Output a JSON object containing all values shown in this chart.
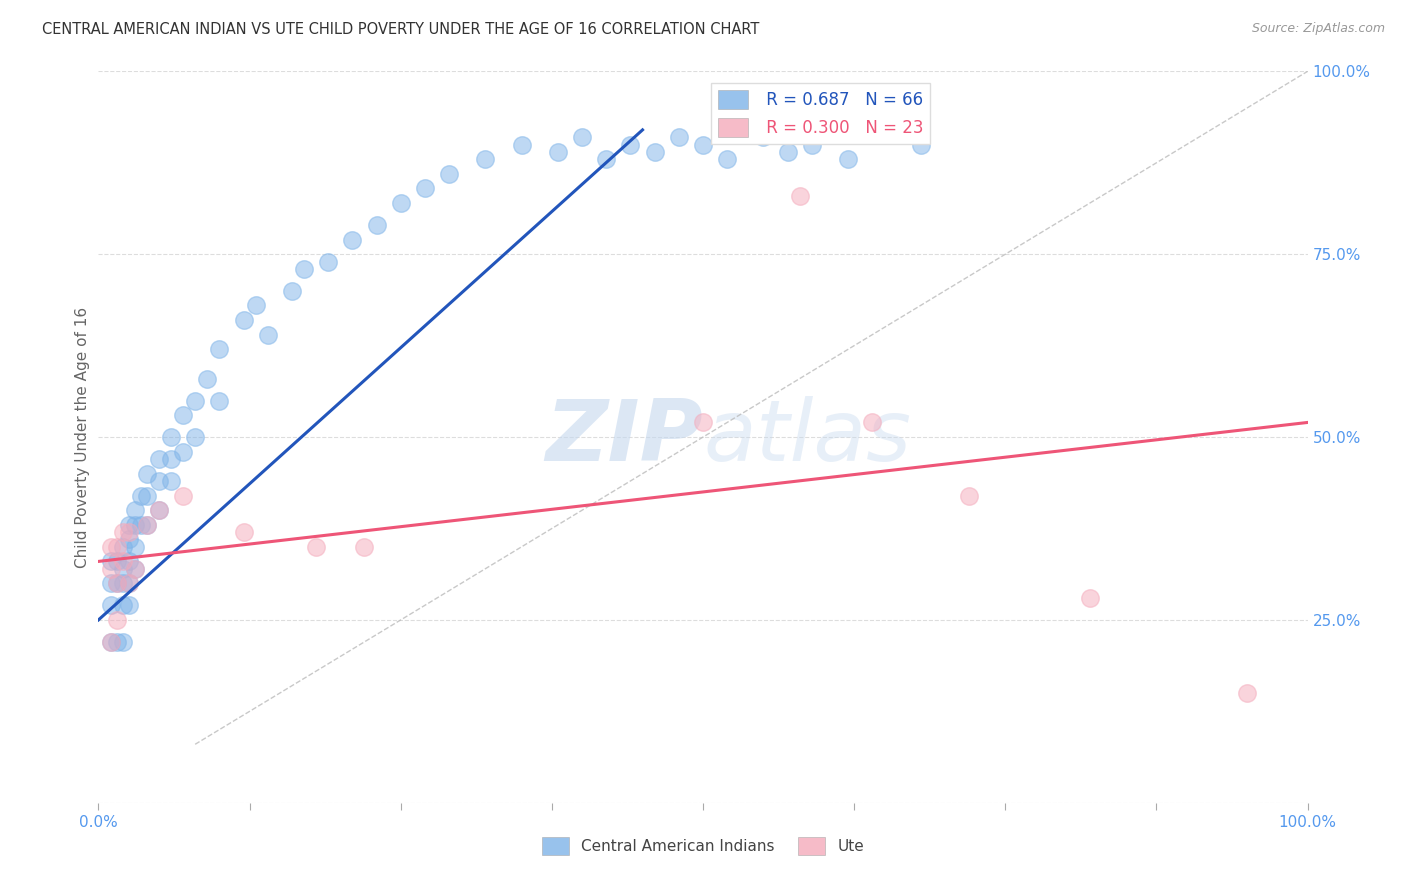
{
  "title": "CENTRAL AMERICAN INDIAN VS UTE CHILD POVERTY UNDER THE AGE OF 16 CORRELATION CHART",
  "source": "Source: ZipAtlas.com",
  "ylabel": "Child Poverty Under the Age of 16",
  "xlim": [
    0,
    1
  ],
  "ylim": [
    0,
    1
  ],
  "blue_color": "#7EB3E8",
  "pink_color": "#F4AABB",
  "blue_line_color": "#2255BB",
  "pink_line_color": "#EE5577",
  "axis_label_color": "#5599EE",
  "title_color": "#333333",
  "watermark_zip": "ZIP",
  "watermark_atlas": "atlas",
  "legend_r1": "R = 0.687",
  "legend_n1": "N = 66",
  "legend_r2": "R = 0.300",
  "legend_n2": "N = 23",
  "blue_scatter_x": [
    0.01,
    0.01,
    0.01,
    0.01,
    0.015,
    0.015,
    0.015,
    0.02,
    0.02,
    0.02,
    0.02,
    0.02,
    0.025,
    0.025,
    0.025,
    0.025,
    0.025,
    0.03,
    0.03,
    0.03,
    0.03,
    0.035,
    0.035,
    0.04,
    0.04,
    0.04,
    0.05,
    0.05,
    0.05,
    0.06,
    0.06,
    0.06,
    0.07,
    0.07,
    0.08,
    0.08,
    0.09,
    0.1,
    0.1,
    0.12,
    0.13,
    0.14,
    0.16,
    0.17,
    0.19,
    0.21,
    0.23,
    0.25,
    0.27,
    0.29,
    0.32,
    0.35,
    0.38,
    0.4,
    0.42,
    0.44,
    0.46,
    0.48,
    0.5,
    0.52,
    0.55,
    0.57,
    0.59,
    0.62,
    0.65,
    0.68
  ],
  "blue_scatter_y": [
    0.33,
    0.3,
    0.27,
    0.22,
    0.33,
    0.3,
    0.22,
    0.35,
    0.32,
    0.3,
    0.27,
    0.22,
    0.38,
    0.36,
    0.33,
    0.3,
    0.27,
    0.4,
    0.38,
    0.35,
    0.32,
    0.42,
    0.38,
    0.45,
    0.42,
    0.38,
    0.47,
    0.44,
    0.4,
    0.5,
    0.47,
    0.44,
    0.53,
    0.48,
    0.55,
    0.5,
    0.58,
    0.62,
    0.55,
    0.66,
    0.68,
    0.64,
    0.7,
    0.73,
    0.74,
    0.77,
    0.79,
    0.82,
    0.84,
    0.86,
    0.88,
    0.9,
    0.89,
    0.91,
    0.88,
    0.9,
    0.89,
    0.91,
    0.9,
    0.88,
    0.91,
    0.89,
    0.9,
    0.88,
    0.92,
    0.9
  ],
  "pink_scatter_x": [
    0.01,
    0.01,
    0.01,
    0.015,
    0.015,
    0.015,
    0.02,
    0.02,
    0.025,
    0.025,
    0.03,
    0.04,
    0.05,
    0.07,
    0.12,
    0.18,
    0.22,
    0.5,
    0.58,
    0.64,
    0.72,
    0.82,
    0.95
  ],
  "pink_scatter_y": [
    0.35,
    0.32,
    0.22,
    0.35,
    0.3,
    0.25,
    0.37,
    0.33,
    0.37,
    0.3,
    0.32,
    0.38,
    0.4,
    0.42,
    0.37,
    0.35,
    0.35,
    0.52,
    0.83,
    0.52,
    0.42,
    0.28,
    0.15
  ],
  "blue_trendline_x": [
    0.0,
    0.45
  ],
  "blue_trendline_y": [
    0.25,
    0.92
  ],
  "pink_trendline_x": [
    0.0,
    1.0
  ],
  "pink_trendline_y": [
    0.33,
    0.52
  ],
  "diag_line_x": [
    0.08,
    1.0
  ],
  "diag_line_y": [
    0.08,
    1.0
  ],
  "background_color": "#FFFFFF",
  "grid_color": "#DDDDDD"
}
